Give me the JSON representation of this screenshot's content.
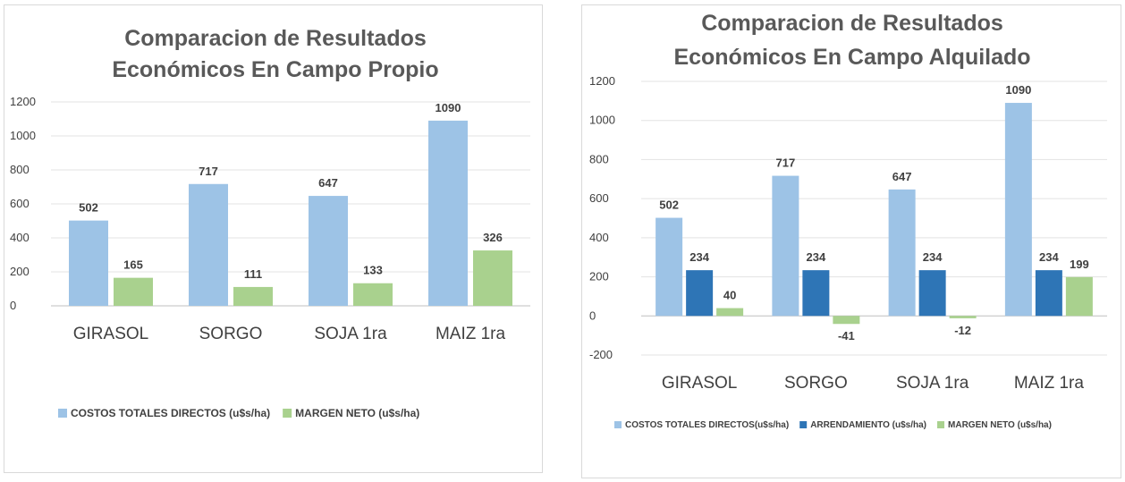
{
  "chart_data": [
    {
      "type": "bar",
      "title": "Comparacion de Resultados Económicos En Campo Propio",
      "title_lines": [
        "Comparacion de Resultados",
        "Económicos En Campo Propio"
      ],
      "categories": [
        "GIRASOL",
        "SORGO",
        "SOJA 1ra",
        "MAIZ 1ra"
      ],
      "series": [
        {
          "name": "COSTOS TOTALES DIRECTOS (u$s/ha)",
          "color": "#9dc3e6",
          "values": [
            502,
            717,
            647,
            1090
          ]
        },
        {
          "name": "MARGEN NETO (u$s/ha)",
          "color": "#a9d18e",
          "values": [
            165,
            111,
            133,
            326
          ]
        }
      ],
      "ylim": [
        0,
        1200
      ],
      "yticks": [
        0,
        200,
        400,
        600,
        800,
        1000,
        1200
      ],
      "grid": true,
      "legend": "bottom"
    },
    {
      "type": "bar",
      "title": "Comparacion de Resultados Económicos En Campo Alquilado",
      "title_lines": [
        "Comparacion de Resultados",
        "Económicos En Campo Alquilado"
      ],
      "categories": [
        "GIRASOL",
        "SORGO",
        "SOJA 1ra",
        "MAIZ 1ra"
      ],
      "series": [
        {
          "name": "COSTOS TOTALES DIRECTOS(u$s/ha)",
          "color": "#9dc3e6",
          "values": [
            502,
            717,
            647,
            1090
          ]
        },
        {
          "name": "ARRENDAMIENTO (u$s/ha)",
          "color": "#2e75b6",
          "values": [
            234,
            234,
            234,
            234
          ]
        },
        {
          "name": "MARGEN NETO (u$s/ha)",
          "color": "#a9d18e",
          "values": [
            40,
            -41,
            -12,
            199
          ]
        }
      ],
      "ylim": [
        -200,
        1200
      ],
      "yticks": [
        -200,
        0,
        200,
        400,
        600,
        800,
        1000,
        1200
      ],
      "grid": true,
      "legend": "bottom"
    }
  ]
}
